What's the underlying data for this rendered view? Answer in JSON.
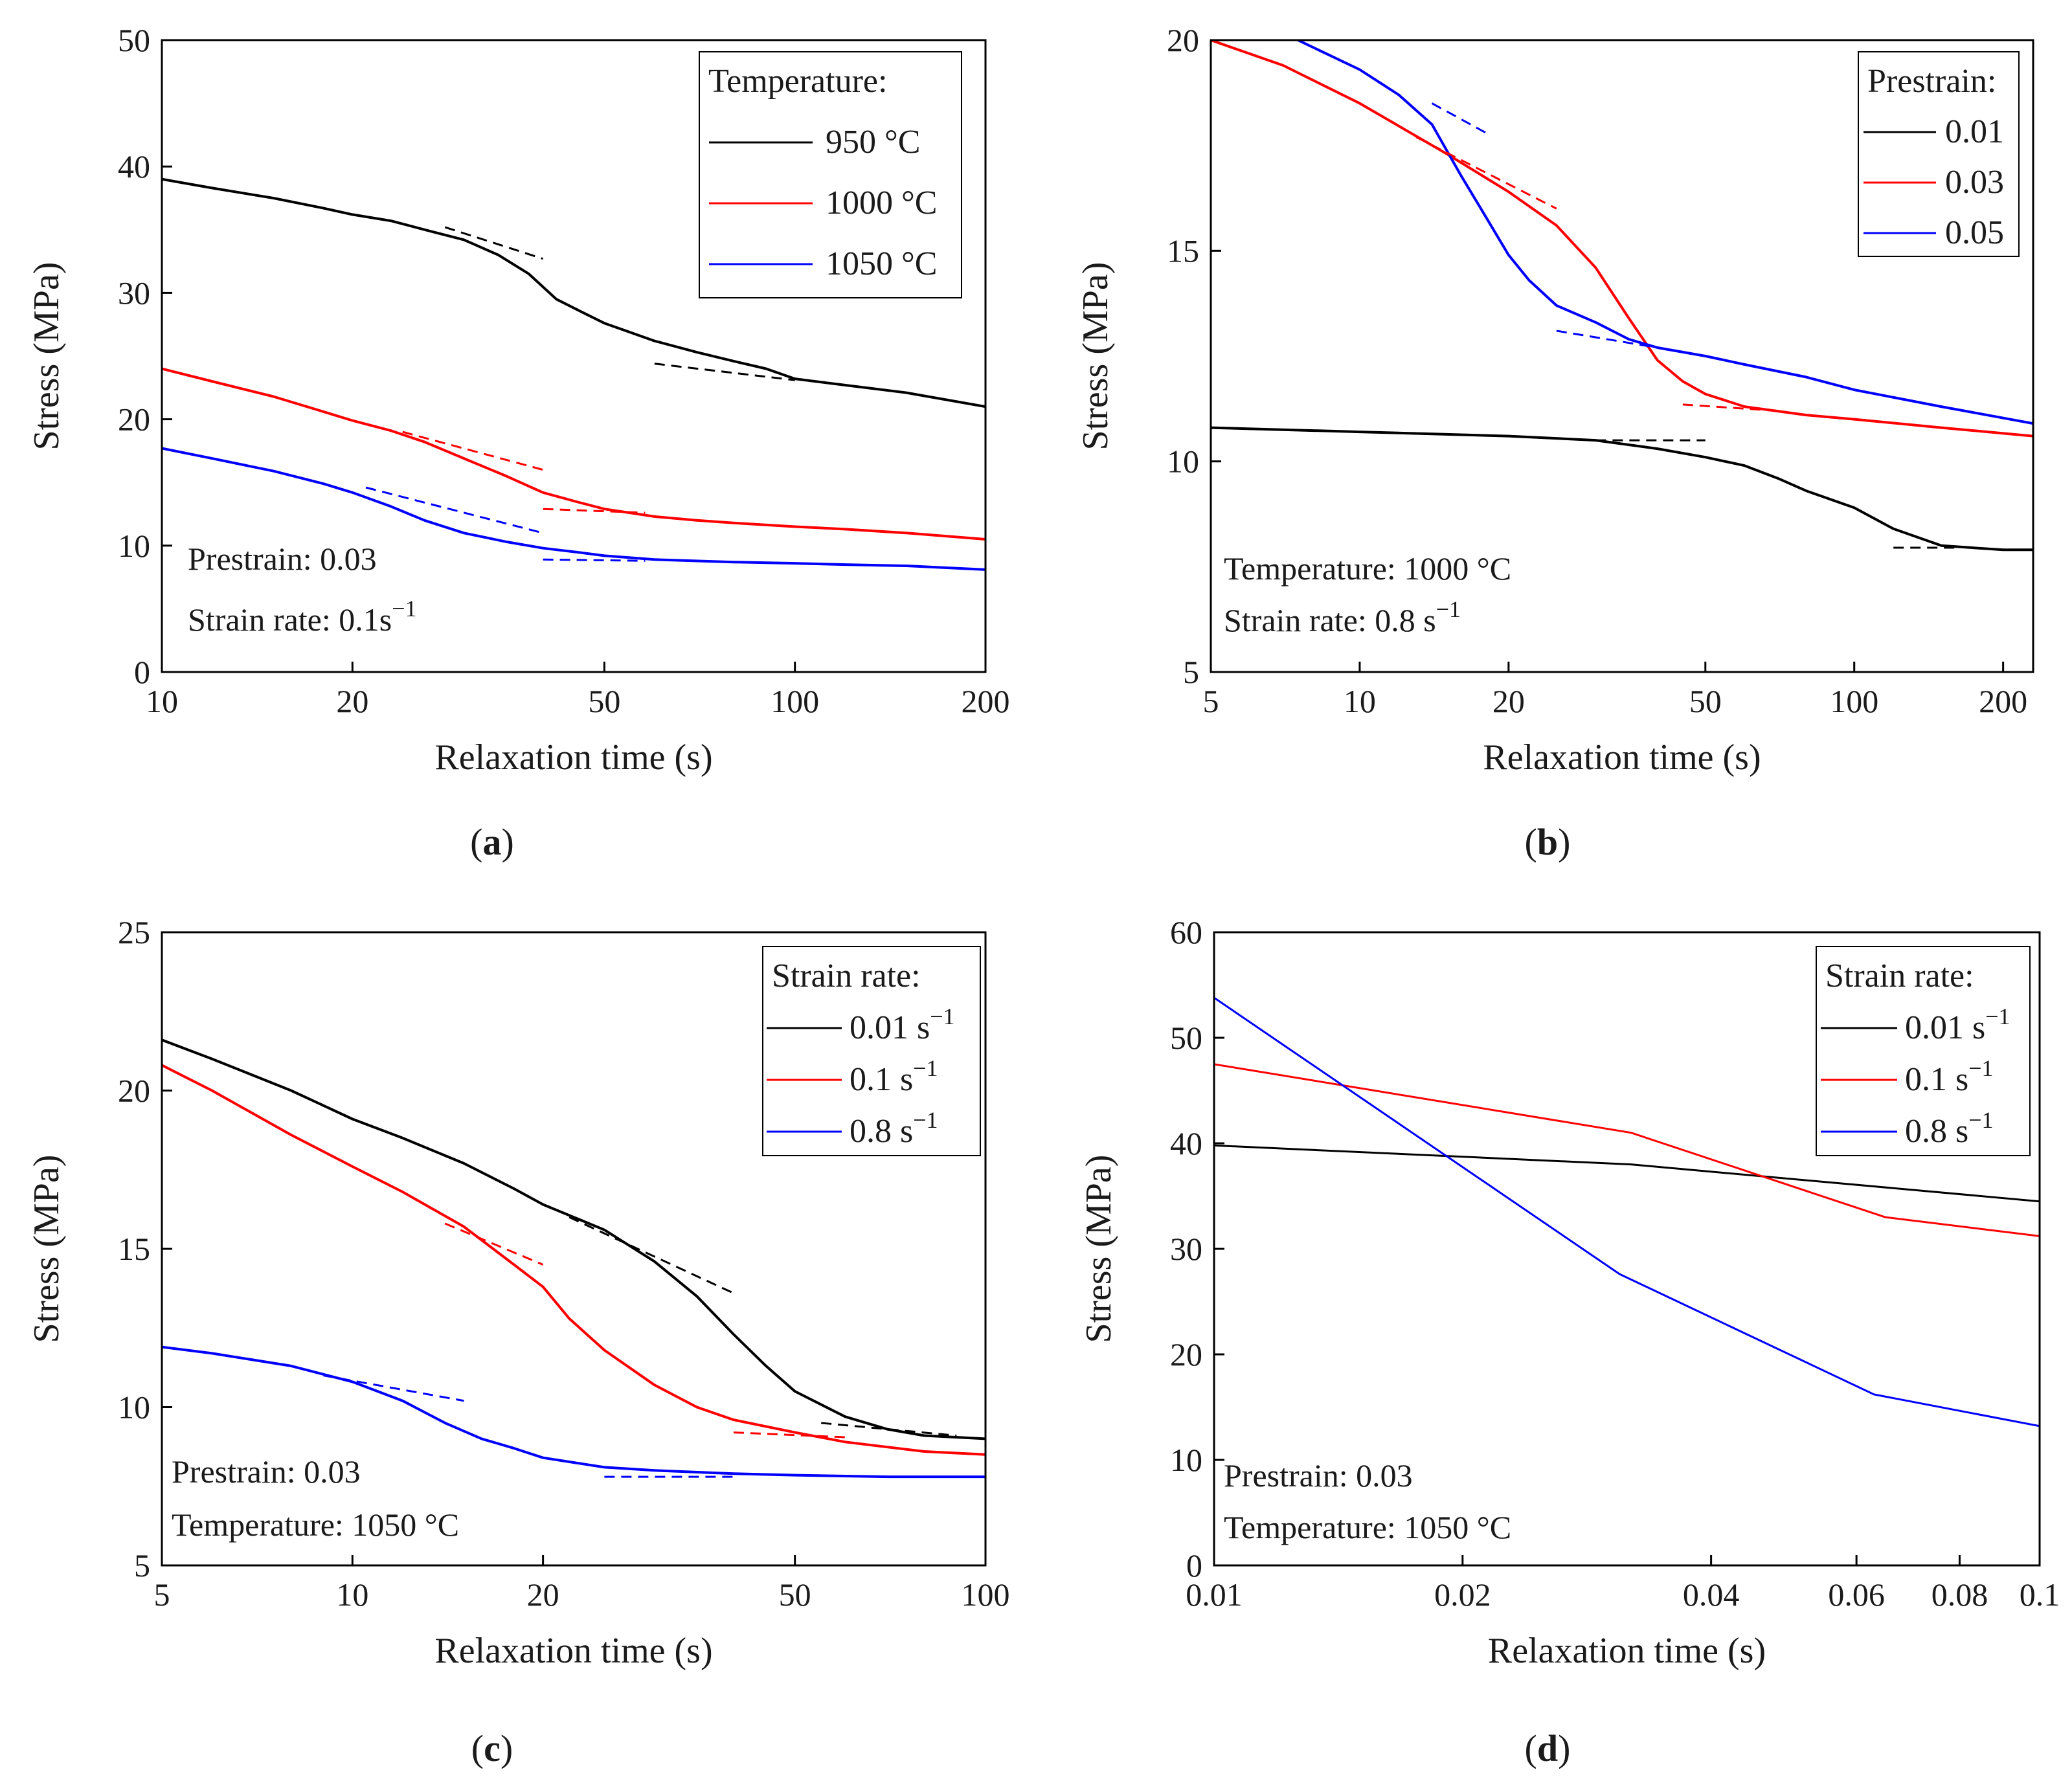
{
  "chart_data": [
    {
      "id": "a",
      "type": "line",
      "panel_label": "a",
      "xscale": "log",
      "xlim": [
        10,
        200
      ],
      "ylim": [
        0,
        50
      ],
      "xticks": [
        10,
        20,
        50,
        100,
        200
      ],
      "xtick_labels": [
        "10",
        "20",
        "50",
        "100",
        "200"
      ],
      "yticks": [
        0,
        10,
        20,
        30,
        40,
        50
      ],
      "ytick_labels": [
        "0",
        "10",
        "20",
        "30",
        "40",
        "50"
      ],
      "xlabel": "Relaxation time (s)",
      "ylabel": "Stress (MPa)",
      "legend": {
        "title": "Temperature:",
        "position": "top-right"
      },
      "annotations": [
        {
          "prefix": "Prestrain: 0.03",
          "sup": ""
        },
        {
          "prefix": "Strain rate: 0.1s",
          "sup": "−1"
        }
      ],
      "series": [
        {
          "name": "950 °C",
          "color": "#000000",
          "x": [
            10,
            12,
            15,
            18,
            20,
            23,
            26,
            30,
            34,
            38,
            42,
            46,
            50,
            60,
            70,
            80,
            90,
            100,
            120,
            150,
            200
          ],
          "y": [
            39.0,
            38.3,
            37.5,
            36.7,
            36.2,
            35.7,
            35.0,
            34.2,
            33.0,
            31.5,
            29.5,
            28.5,
            27.6,
            26.2,
            25.3,
            24.6,
            24.0,
            23.2,
            22.7,
            22.1,
            21.0
          ]
        },
        {
          "name": "1000 °C",
          "color": "#ff0000",
          "x": [
            10,
            12,
            15,
            18,
            20,
            23,
            26,
            30,
            35,
            40,
            45,
            50,
            60,
            70,
            80,
            100,
            120,
            150,
            200
          ],
          "y": [
            24.0,
            23.0,
            21.8,
            20.6,
            19.9,
            19.1,
            18.2,
            16.9,
            15.5,
            14.2,
            13.5,
            12.9,
            12.3,
            12.0,
            11.8,
            11.5,
            11.3,
            11.0,
            10.5
          ]
        },
        {
          "name": "1050 °C",
          "color": "#0000ff",
          "x": [
            10,
            12,
            15,
            18,
            20,
            23,
            26,
            30,
            35,
            40,
            45,
            50,
            60,
            80,
            100,
            120,
            150,
            200
          ],
          "y": [
            17.7,
            16.9,
            15.9,
            14.9,
            14.2,
            13.1,
            12.0,
            11.0,
            10.3,
            9.8,
            9.5,
            9.2,
            8.9,
            8.7,
            8.6,
            8.5,
            8.4,
            8.1
          ]
        }
      ],
      "tangents": [
        {
          "color": "#000000",
          "x": [
            28,
            40
          ],
          "y": [
            35.2,
            32.7
          ]
        },
        {
          "color": "#000000",
          "x": [
            60,
            100
          ],
          "y": [
            24.4,
            23.1
          ]
        },
        {
          "color": "#ff0000",
          "x": [
            24,
            40
          ],
          "y": [
            19.0,
            16.0
          ]
        },
        {
          "color": "#ff0000",
          "x": [
            40,
            58
          ],
          "y": [
            12.9,
            12.6
          ]
        },
        {
          "color": "#0000ff",
          "x": [
            21,
            40
          ],
          "y": [
            14.6,
            11.0
          ]
        },
        {
          "color": "#0000ff",
          "x": [
            40,
            58
          ],
          "y": [
            8.9,
            8.8
          ]
        }
      ]
    },
    {
      "id": "b",
      "type": "line",
      "panel_label": "b",
      "xscale": "log",
      "xlim": [
        5,
        230
      ],
      "ylim": [
        5,
        20
      ],
      "xticks": [
        5,
        10,
        20,
        50,
        100,
        200
      ],
      "xtick_labels": [
        "5",
        "10",
        "20",
        "50",
        "100",
        "200"
      ],
      "yticks": [
        5,
        10,
        15,
        20
      ],
      "ytick_labels": [
        "5",
        "10",
        "15",
        "20"
      ],
      "xlabel": "Relaxation time (s)",
      "ylabel": "Stress (MPa)",
      "legend": {
        "title": "Prestrain:",
        "position": "top-right"
      },
      "annotations": [
        {
          "prefix": "Temperature: 1000 °C",
          "sup": ""
        },
        {
          "prefix": "Strain rate: 0.8 s",
          "sup": "−1"
        }
      ],
      "series": [
        {
          "name": "0.01",
          "color": "#000000",
          "x": [
            5,
            10,
            20,
            30,
            40,
            50,
            60,
            70,
            80,
            100,
            120,
            150,
            200,
            230
          ],
          "y": [
            10.8,
            10.7,
            10.6,
            10.5,
            10.3,
            10.1,
            9.9,
            9.6,
            9.3,
            8.9,
            8.4,
            8.0,
            7.9,
            7.9
          ]
        },
        {
          "name": "0.03",
          "color": "#ff0000",
          "x": [
            5,
            7,
            10,
            15,
            20,
            25,
            30,
            35,
            40,
            45,
            50,
            60,
            80,
            100,
            150,
            230
          ],
          "y": [
            20.0,
            19.4,
            18.5,
            17.3,
            16.4,
            15.6,
            14.6,
            13.4,
            12.4,
            11.9,
            11.6,
            11.3,
            11.1,
            11.0,
            10.8,
            10.6
          ]
        },
        {
          "name": "0.05",
          "color": "#0000ff",
          "x": [
            7.5,
            10,
            12,
            14,
            16,
            18,
            20,
            22,
            25,
            30,
            35,
            40,
            50,
            60,
            80,
            100,
            150,
            230
          ],
          "y": [
            20.0,
            19.3,
            18.7,
            18.0,
            16.8,
            15.8,
            14.9,
            14.3,
            13.7,
            13.3,
            12.9,
            12.7,
            12.5,
            12.3,
            12.0,
            11.7,
            11.3,
            10.9
          ]
        }
      ],
      "tangents": [
        {
          "color": "#000000",
          "x": [
            30,
            50
          ],
          "y": [
            10.5,
            10.5
          ]
        },
        {
          "color": "#000000",
          "x": [
            120,
            160
          ],
          "y": [
            7.95,
            7.95
          ]
        },
        {
          "color": "#ff0000",
          "x": [
            13,
            25
          ],
          "y": [
            17.7,
            16.0
          ]
        },
        {
          "color": "#ff0000",
          "x": [
            45,
            70
          ],
          "y": [
            11.35,
            11.2
          ]
        },
        {
          "color": "#0000ff",
          "x": [
            14,
            18
          ],
          "y": [
            18.5,
            17.8
          ]
        },
        {
          "color": "#0000ff",
          "x": [
            25,
            45
          ],
          "y": [
            13.1,
            12.6
          ]
        }
      ]
    },
    {
      "id": "c",
      "type": "line",
      "panel_label": "c",
      "xscale": "log",
      "xlim": [
        5,
        100
      ],
      "ylim": [
        5,
        25
      ],
      "xticks": [
        5,
        10,
        20,
        50,
        100
      ],
      "xtick_labels": [
        "5",
        "10",
        "20",
        "50",
        "100"
      ],
      "yticks": [
        5,
        10,
        15,
        20,
        25
      ],
      "ytick_labels": [
        "5",
        "10",
        "15",
        "20",
        "25"
      ],
      "xlabel": "Relaxation time (s)",
      "ylabel": "Stress (MPa)",
      "legend": {
        "title": "Strain rate:",
        "position": "top-right"
      },
      "legend_entries": [
        {
          "prefix": "0.01 s",
          "sup": "−1"
        },
        {
          "prefix": "0.1 s",
          "sup": "−1"
        },
        {
          "prefix": "0.8 s",
          "sup": "−1"
        }
      ],
      "annotations": [
        {
          "prefix": "Prestrain: 0.03",
          "sup": ""
        },
        {
          "prefix": "Temperature: 1050 °C",
          "sup": ""
        }
      ],
      "series": [
        {
          "name": "0.01 s−1",
          "color": "#000000",
          "x": [
            5,
            6,
            8,
            10,
            12,
            15,
            18,
            20,
            25,
            30,
            35,
            40,
            45,
            50,
            60,
            70,
            80,
            100
          ],
          "y": [
            21.6,
            21.0,
            20.0,
            19.1,
            18.5,
            17.7,
            16.9,
            16.4,
            15.6,
            14.6,
            13.5,
            12.3,
            11.3,
            10.5,
            9.7,
            9.3,
            9.1,
            9.0
          ]
        },
        {
          "name": "0.1 s−1",
          "color": "#ff0000",
          "x": [
            5,
            6,
            8,
            10,
            12,
            15,
            18,
            20,
            22,
            25,
            30,
            35,
            40,
            50,
            60,
            80,
            100
          ],
          "y": [
            20.8,
            20.0,
            18.6,
            17.6,
            16.8,
            15.7,
            14.5,
            13.8,
            12.8,
            11.8,
            10.7,
            10.0,
            9.6,
            9.2,
            8.9,
            8.6,
            8.5
          ]
        },
        {
          "name": "0.8 s−1",
          "color": "#0000ff",
          "x": [
            5,
            6,
            8,
            10,
            12,
            14,
            16,
            18,
            20,
            25,
            30,
            40,
            50,
            70,
            100
          ],
          "y": [
            11.9,
            11.7,
            11.3,
            10.8,
            10.2,
            9.5,
            9.0,
            8.7,
            8.4,
            8.1,
            8.0,
            7.9,
            7.85,
            7.8,
            7.8
          ]
        }
      ],
      "tangents": [
        {
          "color": "#000000",
          "x": [
            22,
            40
          ],
          "y": [
            16.0,
            13.6
          ]
        },
        {
          "color": "#000000",
          "x": [
            55,
            90
          ],
          "y": [
            9.5,
            9.1
          ]
        },
        {
          "color": "#ff0000",
          "x": [
            14,
            20
          ],
          "y": [
            15.8,
            14.5
          ]
        },
        {
          "color": "#ff0000",
          "x": [
            40,
            60
          ],
          "y": [
            9.2,
            9.05
          ]
        },
        {
          "color": "#0000ff",
          "x": [
            9,
            15
          ],
          "y": [
            11.0,
            10.2
          ]
        },
        {
          "color": "#0000ff",
          "x": [
            25,
            40
          ],
          "y": [
            7.8,
            7.8
          ]
        }
      ]
    },
    {
      "id": "d",
      "type": "line",
      "panel_label": "d",
      "xscale": "log",
      "xlim": [
        0.01,
        0.1
      ],
      "ylim": [
        0,
        60
      ],
      "xticks": [
        0.01,
        0.02,
        0.04,
        0.06,
        0.08,
        0.1
      ],
      "xtick_labels": [
        "0.01",
        "0.02",
        "0.04",
        "0.06",
        "0.08",
        "0.1"
      ],
      "yticks": [
        0,
        10,
        20,
        30,
        40,
        50,
        60
      ],
      "ytick_labels": [
        "0",
        "10",
        "20",
        "30",
        "40",
        "50",
        "60"
      ],
      "xlabel": "Relaxation time (s)",
      "ylabel": "Stress (MPa)",
      "legend": {
        "title": "Strain rate:",
        "position": "top-right"
      },
      "legend_entries": [
        {
          "prefix": "0.01 s",
          "sup": "−1"
        },
        {
          "prefix": "0.1 s",
          "sup": "−1"
        },
        {
          "prefix": "0.8 s",
          "sup": "−1"
        }
      ],
      "annotations": [
        {
          "prefix": "Prestrain: 0.03",
          "sup": ""
        },
        {
          "prefix": "Temperature: 1050 °C",
          "sup": ""
        }
      ],
      "series": [
        {
          "name": "0.01 s−1",
          "color": "#000000",
          "x": [
            0.01,
            0.032,
            0.1
          ],
          "y": [
            39.8,
            38.0,
            34.5
          ]
        },
        {
          "name": "0.1 s−1",
          "color": "#ff0000",
          "x": [
            0.01,
            0.032,
            0.065,
            0.1
          ],
          "y": [
            47.5,
            41.0,
            33.0,
            31.2
          ]
        },
        {
          "name": "0.8 s−1",
          "color": "#0000ff",
          "x": [
            0.01,
            0.031,
            0.063,
            0.1
          ],
          "y": [
            53.8,
            27.6,
            16.2,
            13.2
          ]
        }
      ],
      "tangents": []
    }
  ]
}
